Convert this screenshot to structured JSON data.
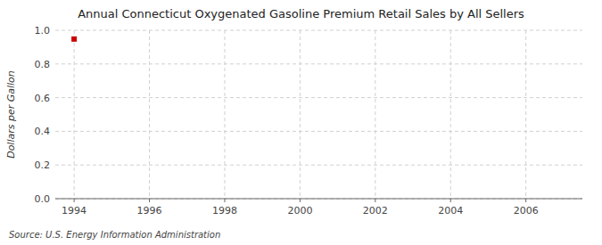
{
  "chart_data": {
    "type": "scatter",
    "title": "Annual Connecticut Oxygenated Gasoline Premium Retail Sales by All Sellers",
    "y_label": "Dollars per Gallon",
    "source": "Source: U.S. Energy Information Administration",
    "x": [
      1994
    ],
    "values": [
      0.948
    ],
    "color": "#cc0000",
    "marker": "square",
    "xlim": [
      1993.5,
      2007.5
    ],
    "ylim": [
      0.0,
      1.0
    ],
    "xticks": [
      1994,
      1996,
      1998,
      2000,
      2002,
      2004,
      2006
    ],
    "yticks": [
      {
        "value": 0,
        "label": "0.0"
      },
      0.2,
      0.4,
      0.6,
      0.8,
      {
        "value": 1,
        "label": "1.0"
      }
    ],
    "grid": true
  }
}
